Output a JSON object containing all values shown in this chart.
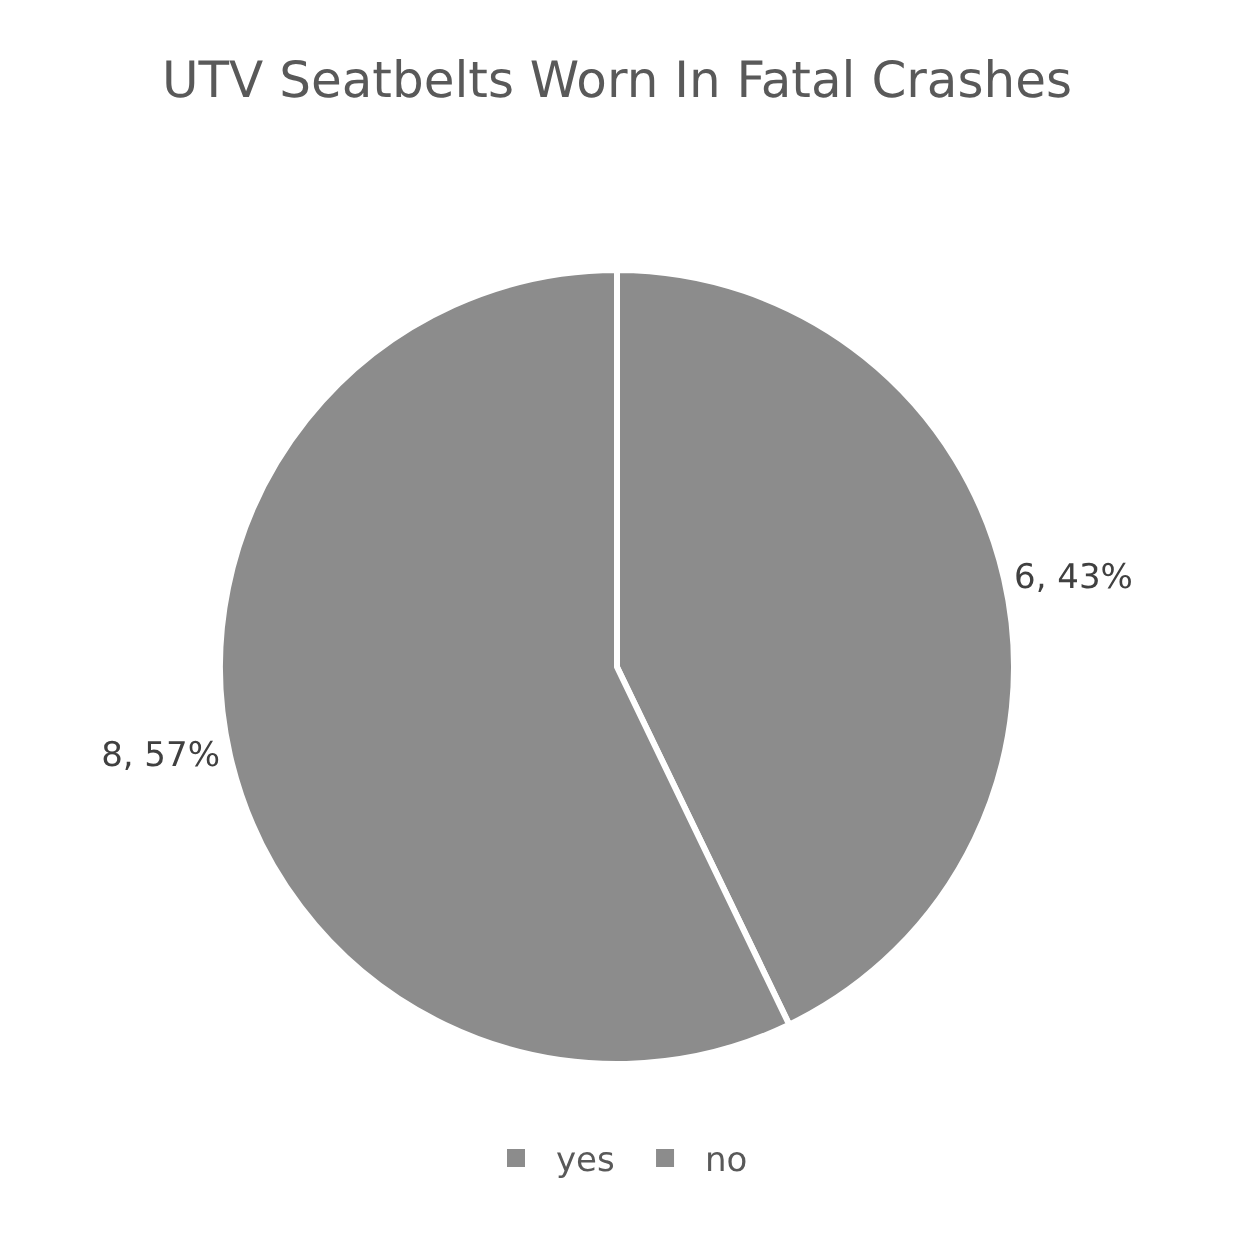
{
  "chart_data": {
    "type": "pie",
    "title": "UTV Seatbelts Worn In Fatal Crashes",
    "categories": [
      "yes",
      "no"
    ],
    "values": [
      6,
      8
    ],
    "colors": [
      "#8c8c8c",
      "#8c8c8c"
    ],
    "value_labels": [
      "6, 43%",
      "8, 57%"
    ],
    "legend": "bottom"
  }
}
